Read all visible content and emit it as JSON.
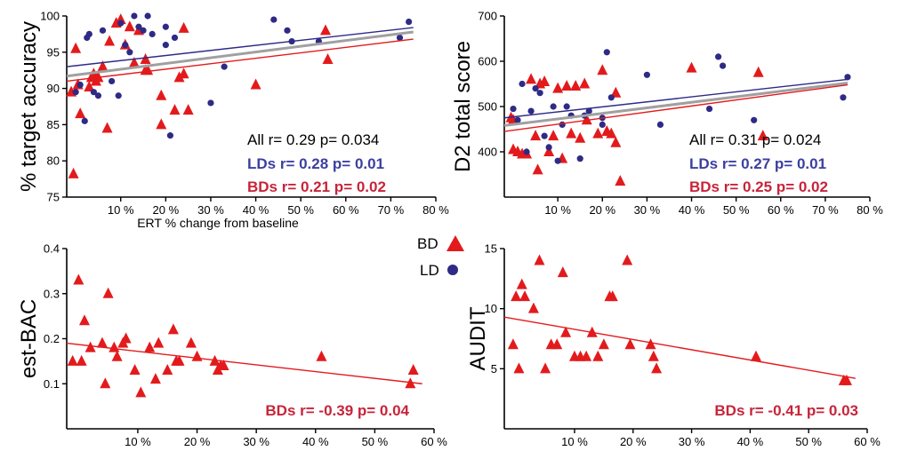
{
  "colors": {
    "BD": "#e31a1c",
    "LD": "#2e2a86",
    "all_line": "#a0a0a0",
    "all_text": "#000000",
    "bd_text": "#c7243a",
    "ld_text": "#3b3fa0"
  },
  "legend": {
    "bd_label": "BD",
    "ld_label": "LD"
  },
  "chart_data": [
    {
      "type": "scatter",
      "title": "",
      "xlabel": "ERT % change from baseline",
      "ylabel": "% target accuracy",
      "xlim": [
        -2,
        80
      ],
      "ylim": [
        75,
        100
      ],
      "xticks": [
        10,
        20,
        30,
        40,
        50,
        60,
        70,
        80
      ],
      "xtick_labels": [
        "10 %",
        "20 %",
        "30 %",
        "40 %",
        "50 %",
        "60 %",
        "70 %",
        "80 %"
      ],
      "yticks": [
        75,
        80,
        85,
        90,
        95,
        100
      ],
      "ytick_labels": [
        "75",
        "80",
        "85",
        "90",
        "95",
        "100"
      ],
      "series": [
        {
          "name": "BD",
          "marker": "triangle",
          "points": [
            [
              -1,
              89.5
            ],
            [
              -0.5,
              78.2
            ],
            [
              0,
              95.5
            ],
            [
              0.5,
              90.5
            ],
            [
              1,
              86.5
            ],
            [
              3,
              90.2
            ],
            [
              3.5,
              91.5
            ],
            [
              4,
              92
            ],
            [
              4.5,
              91
            ],
            [
              5,
              91.5
            ],
            [
              6,
              93
            ],
            [
              7,
              84.5
            ],
            [
              7.5,
              96.5
            ],
            [
              9,
              99
            ],
            [
              10,
              99.5
            ],
            [
              11,
              96
            ],
            [
              12,
              98.5
            ],
            [
              13,
              93.5
            ],
            [
              14,
              98
            ],
            [
              15.5,
              94
            ],
            [
              15.5,
              92.5
            ],
            [
              16,
              92.5
            ],
            [
              19,
              85
            ],
            [
              19,
              89
            ],
            [
              22,
              87
            ],
            [
              23,
              91.5
            ],
            [
              24,
              92
            ],
            [
              24,
              98.3
            ],
            [
              25,
              87
            ],
            [
              40,
              90.5
            ],
            [
              55.5,
              98
            ],
            [
              56,
              94
            ]
          ]
        },
        {
          "name": "LD",
          "marker": "circle",
          "points": [
            [
              0,
              89.5
            ],
            [
              1,
              90.5
            ],
            [
              2,
              85.5
            ],
            [
              2.5,
              97
            ],
            [
              3,
              97.5
            ],
            [
              4,
              89.5
            ],
            [
              5,
              89
            ],
            [
              6,
              98
            ],
            [
              8,
              91
            ],
            [
              9.5,
              89
            ],
            [
              10,
              99
            ],
            [
              11,
              96
            ],
            [
              12,
              95
            ],
            [
              13,
              100
            ],
            [
              14,
              98.5
            ],
            [
              15,
              98
            ],
            [
              16,
              100
            ],
            [
              17,
              97.5
            ],
            [
              20,
              96
            ],
            [
              20,
              98.5
            ],
            [
              21,
              83.5
            ],
            [
              22,
              97
            ],
            [
              30,
              88
            ],
            [
              33,
              93
            ],
            [
              44,
              99.5
            ],
            [
              47,
              98
            ],
            [
              48,
              96.5
            ],
            [
              54,
              96.5
            ],
            [
              72,
              97
            ],
            [
              74,
              99.2
            ]
          ]
        }
      ],
      "fits": [
        {
          "name": "All",
          "x": [
            -2,
            75
          ],
          "y": [
            91.7,
            97.8
          ]
        },
        {
          "name": "LD",
          "x": [
            -2,
            75
          ],
          "y": [
            93.0,
            98.4
          ]
        },
        {
          "name": "BD",
          "x": [
            -2,
            75
          ],
          "y": [
            91.0,
            96.8
          ]
        }
      ],
      "stats": [
        {
          "text": "All r= 0.29 p= 0.034",
          "color": "all_text",
          "bold": false
        },
        {
          "text": "LDs r= 0.28 p= 0.01",
          "color": "ld_text",
          "bold": true
        },
        {
          "text": "BDs r= 0.21 p= 0.02",
          "color": "bd_text",
          "bold": true
        }
      ]
    },
    {
      "type": "scatter",
      "title": "",
      "xlabel": "",
      "ylabel": "D2 total score",
      "xlim": [
        -2,
        80
      ],
      "ylim": [
        300,
        700
      ],
      "xticks": [
        10,
        20,
        30,
        40,
        50,
        60,
        70,
        80
      ],
      "xtick_labels": [
        "10 %",
        "20 %",
        "30 %",
        "40 %",
        "50 %",
        "60 %",
        "70 %",
        "80 %"
      ],
      "yticks": [
        400,
        500,
        600,
        700
      ],
      "ytick_labels": [
        "400",
        "500",
        "600",
        "700"
      ],
      "series": [
        {
          "name": "BD",
          "marker": "triangle",
          "points": [
            [
              -0.5,
              475
            ],
            [
              0,
              405
            ],
            [
              0,
              470
            ],
            [
              1,
              400
            ],
            [
              2,
              395
            ],
            [
              3,
              395
            ],
            [
              4,
              560
            ],
            [
              5,
              435
            ],
            [
              5.5,
              360
            ],
            [
              6,
              550
            ],
            [
              7,
              555
            ],
            [
              8,
              400
            ],
            [
              9,
              435
            ],
            [
              10,
              540
            ],
            [
              11,
              385
            ],
            [
              12,
              545
            ],
            [
              13,
              440
            ],
            [
              14,
              545
            ],
            [
              15,
              430
            ],
            [
              16,
              550
            ],
            [
              16.5,
              470
            ],
            [
              19,
              440
            ],
            [
              20,
              580
            ],
            [
              21,
              445
            ],
            [
              22,
              440
            ],
            [
              23,
              420
            ],
            [
              23,
              530
            ],
            [
              24,
              335
            ],
            [
              40,
              585
            ],
            [
              55,
              575
            ],
            [
              56,
              435
            ]
          ]
        },
        {
          "name": "LD",
          "marker": "circle",
          "points": [
            [
              0,
              495
            ],
            [
              1,
              470
            ],
            [
              2,
              550
            ],
            [
              3,
              400
            ],
            [
              4,
              490
            ],
            [
              5,
              540
            ],
            [
              6,
              530
            ],
            [
              7,
              435
            ],
            [
              8,
              410
            ],
            [
              9,
              500
            ],
            [
              10,
              380
            ],
            [
              11,
              460
            ],
            [
              12,
              500
            ],
            [
              13,
              480
            ],
            [
              15,
              385
            ],
            [
              16,
              480
            ],
            [
              17,
              490
            ],
            [
              20,
              475
            ],
            [
              20,
              460
            ],
            [
              21,
              620
            ],
            [
              22,
              520
            ],
            [
              30,
              570
            ],
            [
              33,
              460
            ],
            [
              44,
              495
            ],
            [
              46,
              610
            ],
            [
              47,
              590
            ],
            [
              54,
              470
            ],
            [
              74,
              520
            ],
            [
              75,
              565
            ]
          ]
        }
      ],
      "fits": [
        {
          "name": "All",
          "x": [
            -2,
            75
          ],
          "y": [
            458,
            552
          ]
        },
        {
          "name": "LD",
          "x": [
            -2,
            75
          ],
          "y": [
            475,
            560
          ]
        },
        {
          "name": "BD",
          "x": [
            -2,
            75
          ],
          "y": [
            445,
            548
          ]
        }
      ],
      "stats": [
        {
          "text": "All r= 0.31 p= 0.024",
          "color": "all_text",
          "bold": false
        },
        {
          "text": "LDs r= 0.27 p= 0.01",
          "color": "ld_text",
          "bold": true
        },
        {
          "text": "BDs r= 0.25 p= 0.02",
          "color": "bd_text",
          "bold": true
        }
      ]
    },
    {
      "type": "scatter",
      "title": "",
      "xlabel": "",
      "ylabel": "est-BAC",
      "xlim": [
        -2,
        60
      ],
      "ylim": [
        0,
        0.4
      ],
      "xticks": [
        10,
        20,
        30,
        40,
        50,
        60
      ],
      "xtick_labels": [
        "10 %",
        "20 %",
        "30 %",
        "40 %",
        "50 %",
        "60 %"
      ],
      "yticks": [
        0.1,
        0.2,
        0.3,
        0.4
      ],
      "ytick_labels": [
        "0.1",
        "0.2",
        "0.3",
        "0.4"
      ],
      "series": [
        {
          "name": "BD",
          "marker": "triangle",
          "points": [
            [
              -1,
              0.15
            ],
            [
              0,
              0.33
            ],
            [
              0.5,
              0.15
            ],
            [
              1,
              0.24
            ],
            [
              2,
              0.18
            ],
            [
              4,
              0.19
            ],
            [
              4.5,
              0.1
            ],
            [
              5,
              0.3
            ],
            [
              6,
              0.18
            ],
            [
              6.5,
              0.16
            ],
            [
              7.5,
              0.19
            ],
            [
              8,
              0.2
            ],
            [
              9.5,
              0.13
            ],
            [
              10.5,
              0.08
            ],
            [
              12,
              0.18
            ],
            [
              13,
              0.11
            ],
            [
              13.5,
              0.19
            ],
            [
              15,
              0.13
            ],
            [
              16,
              0.22
            ],
            [
              16.5,
              0.15
            ],
            [
              17,
              0.15
            ],
            [
              19,
              0.19
            ],
            [
              20,
              0.16
            ],
            [
              23,
              0.15
            ],
            [
              23.5,
              0.13
            ],
            [
              24,
              0.14
            ],
            [
              24.5,
              0.14
            ],
            [
              41,
              0.16
            ],
            [
              56,
              0.1
            ],
            [
              56.5,
              0.13
            ]
          ]
        }
      ],
      "fits": [
        {
          "name": "BD",
          "x": [
            -2,
            58
          ],
          "y": [
            0.19,
            0.1
          ]
        }
      ],
      "stats": [
        {
          "text": "BDs r= -0.39 p= 0.04",
          "color": "bd_text",
          "bold": true
        }
      ]
    },
    {
      "type": "scatter",
      "title": "",
      "xlabel": "",
      "ylabel": "AUDIT",
      "xlim": [
        -2,
        60
      ],
      "ylim": [
        0,
        15
      ],
      "xticks": [
        10,
        20,
        30,
        40,
        50,
        60
      ],
      "xtick_labels": [
        "10 %",
        "20 %",
        "30 %",
        "40 %",
        "50 %",
        "60 %"
      ],
      "yticks": [
        5,
        10,
        15
      ],
      "ytick_labels": [
        "5",
        "10",
        "15"
      ],
      "series": [
        {
          "name": "BD",
          "marker": "triangle",
          "points": [
            [
              -0.5,
              7
            ],
            [
              0,
              11
            ],
            [
              0.5,
              5
            ],
            [
              1,
              12
            ],
            [
              1.5,
              11
            ],
            [
              3,
              10
            ],
            [
              4,
              14
            ],
            [
              5,
              5
            ],
            [
              6,
              7
            ],
            [
              7,
              7
            ],
            [
              8,
              13
            ],
            [
              8.5,
              8
            ],
            [
              10,
              6
            ],
            [
              11,
              6
            ],
            [
              12,
              6
            ],
            [
              13,
              8
            ],
            [
              14,
              6
            ],
            [
              15,
              7
            ],
            [
              16,
              11
            ],
            [
              16.5,
              11
            ],
            [
              19,
              14
            ],
            [
              19.5,
              7
            ],
            [
              23,
              7
            ],
            [
              23.5,
              6
            ],
            [
              24,
              5
            ],
            [
              41,
              6
            ],
            [
              56,
              4
            ],
            [
              56.5,
              4
            ]
          ]
        }
      ],
      "fits": [
        {
          "name": "BD",
          "x": [
            -2,
            58
          ],
          "y": [
            9.3,
            4.2
          ]
        }
      ],
      "stats": [
        {
          "text": "BDs r= -0.41 p= 0.03",
          "color": "bd_text",
          "bold": true
        }
      ]
    }
  ]
}
